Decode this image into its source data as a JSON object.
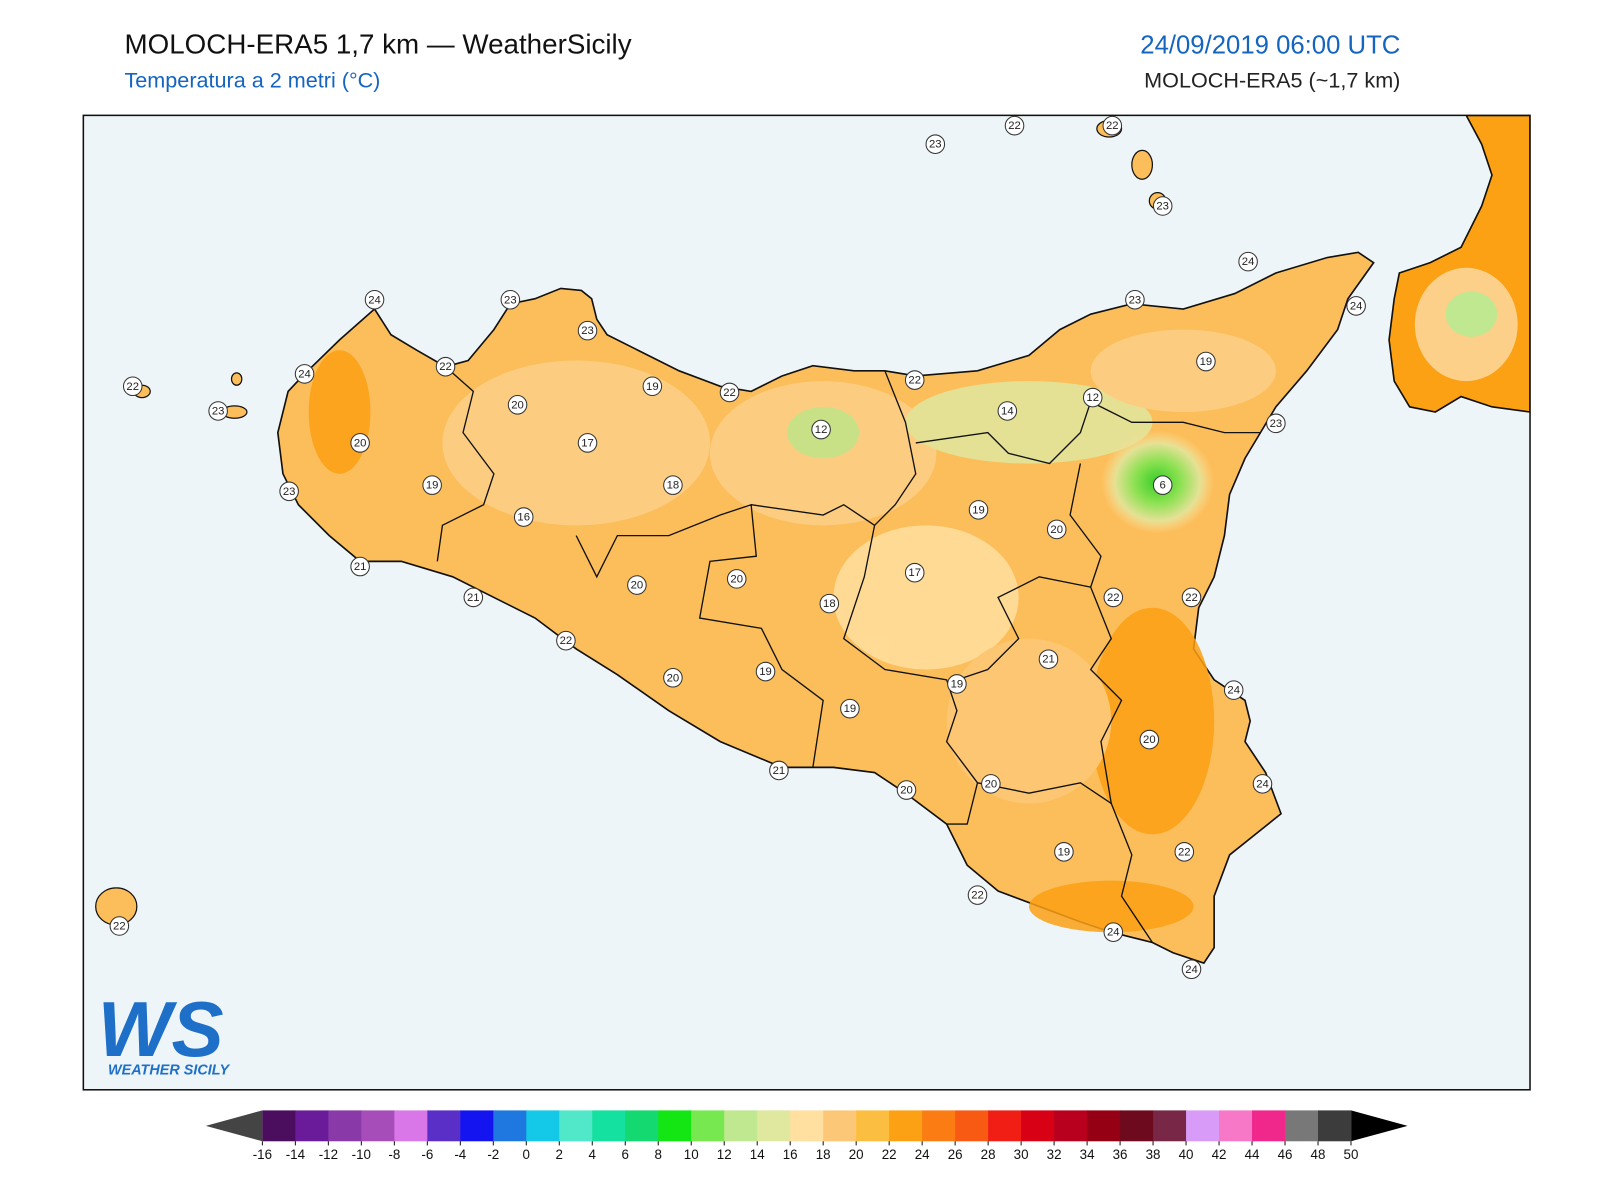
{
  "header": {
    "title": "MOLOCH-ERA5 1,7 km — WeatherSicily",
    "subtitle": "Temperatura a 2 metri (°C)",
    "date": "24/09/2019 06:00 UTC",
    "model": "MOLOCH-ERA5 (~1,7 km)"
  },
  "map": {
    "stations": [
      24,
      23,
      23,
      22,
      24,
      22,
      23,
      20,
      19,
      22,
      20,
      17,
      12,
      22,
      14,
      12,
      19,
      23,
      24,
      24,
      23,
      6,
      19,
      18,
      16,
      23,
      19,
      20,
      21,
      21,
      20,
      20,
      18,
      17,
      22,
      22,
      22,
      21,
      20,
      19,
      19,
      24,
      19,
      20,
      21,
      20,
      20,
      24,
      19,
      22,
      22,
      24,
      24,
      22,
      23,
      22,
      22,
      23
    ],
    "sea_color": "#eef5f8",
    "land_color": "#fcbe5a"
  },
  "logo": {
    "mark": "WS",
    "name": "WEATHER SICILY"
  },
  "colorbar": {
    "ticks": [
      -16,
      -14,
      -12,
      -10,
      -8,
      -6,
      -4,
      -2,
      0,
      2,
      4,
      6,
      8,
      10,
      12,
      14,
      16,
      18,
      20,
      22,
      24,
      26,
      28,
      30,
      32,
      34,
      36,
      38,
      40,
      42,
      44,
      46,
      48,
      50
    ],
    "colors": [
      "#4b0d5e",
      "#6a1b9a",
      "#8a3aa8",
      "#a64dba",
      "#d977e8",
      "#5a2fc8",
      "#1414f0",
      "#1e78e0",
      "#14c8e8",
      "#50e8c8",
      "#14e0a0",
      "#14d870",
      "#14e614",
      "#78e850",
      "#c0e890",
      "#e0e8a0",
      "#ffe0a0",
      "#fcc878",
      "#fcbe40",
      "#fca014",
      "#fc7c14",
      "#f85a14",
      "#f01e14",
      "#d80014",
      "#b8001e",
      "#960014",
      "#6e0a1e",
      "#782846",
      "#d89cf8",
      "#f878c8",
      "#f0288c",
      "#787878",
      "#3c3c3c"
    ],
    "under_color": "#444444",
    "over_color": "#000000"
  }
}
